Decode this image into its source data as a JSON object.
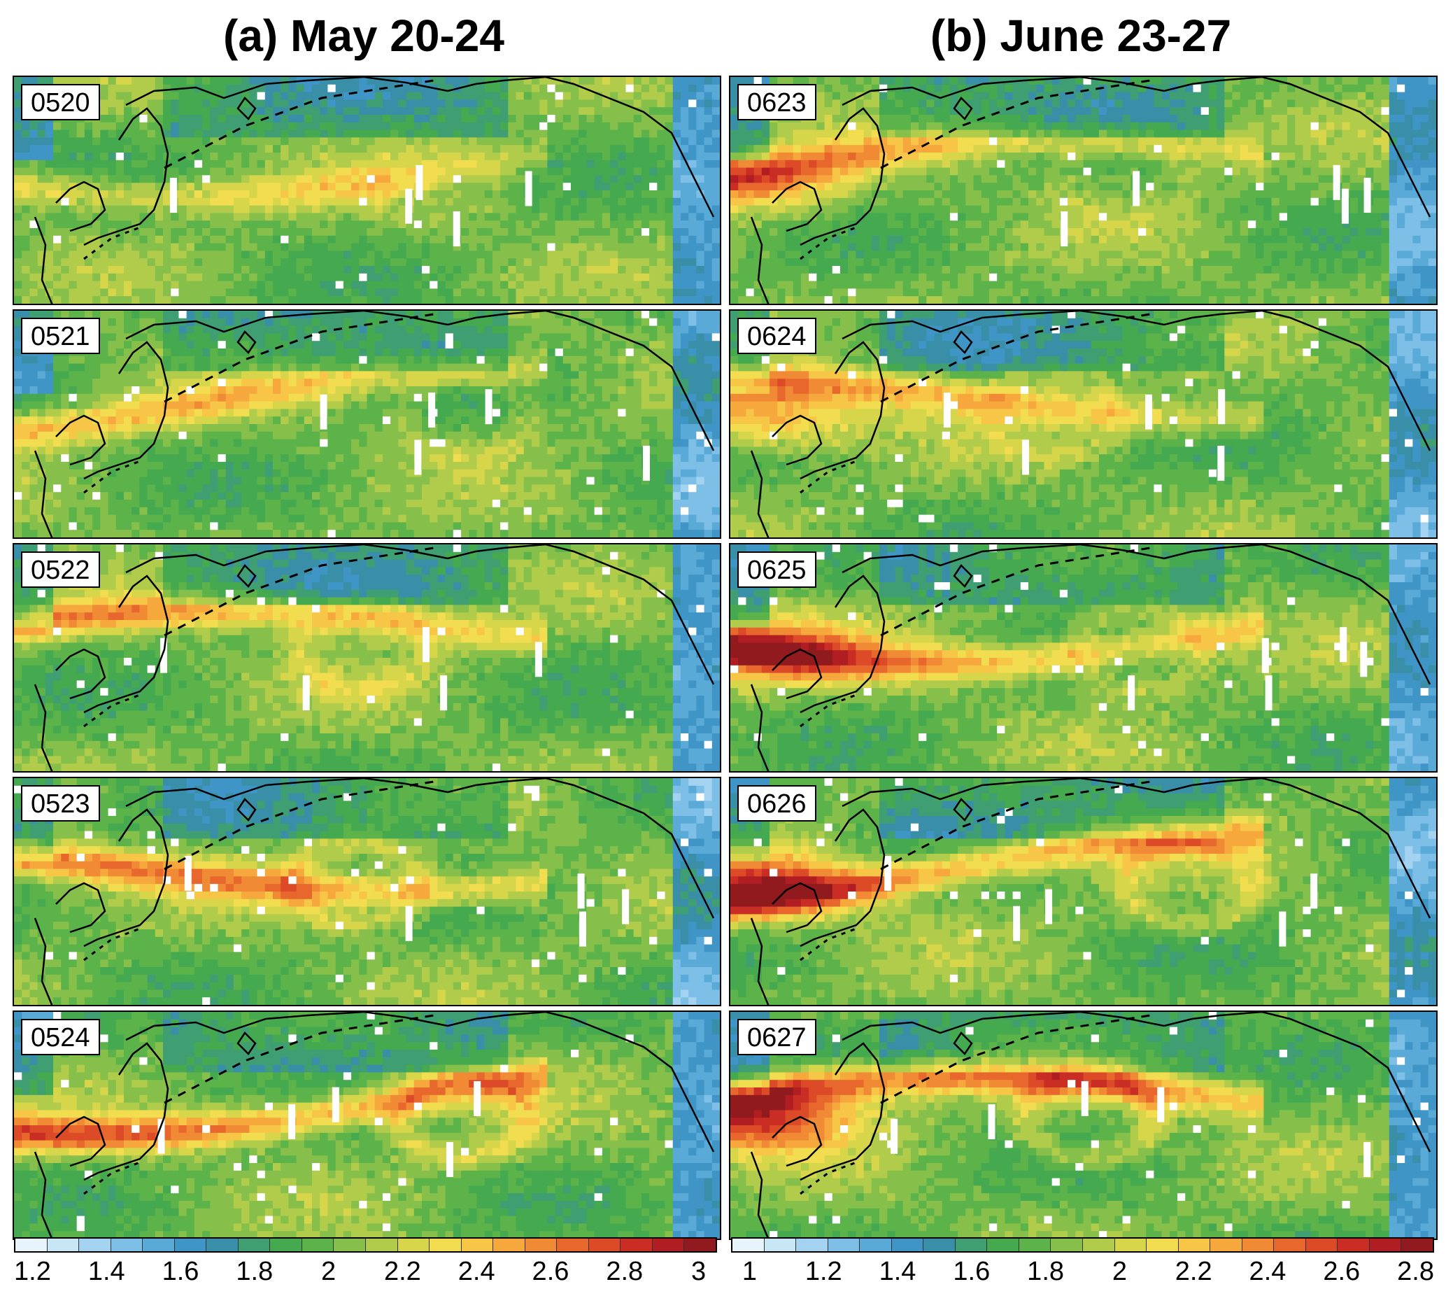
{
  "titles": {
    "left": "(a) May 20-24",
    "right": "(b) June 23-27"
  },
  "panels_left": [
    "0520",
    "0521",
    "0522",
    "0523",
    "0524"
  ],
  "panels_right": [
    "0623",
    "0624",
    "0625",
    "0626",
    "0627"
  ],
  "colorbar_left": {
    "ticks": [
      "1.2",
      "1.4",
      "1.6",
      "1.8",
      "2",
      "2.2",
      "2.4",
      "2.6",
      "2.8",
      "3"
    ],
    "range": [
      1.15,
      3.05
    ]
  },
  "colorbar_right": {
    "ticks": [
      "1",
      "1.2",
      "1.4",
      "1.6",
      "1.8",
      "2",
      "2.2",
      "2.4",
      "2.6",
      "2.8"
    ],
    "range": [
      0.95,
      2.85
    ]
  },
  "colors": {
    "scale": [
      "#e8f4fb",
      "#c7e6f6",
      "#a3d3f0",
      "#7dbfe6",
      "#5aaad8",
      "#3f95c6",
      "#3a8fa8",
      "#3f9f73",
      "#45a94f",
      "#5cb34a",
      "#86c04b",
      "#b0cc4a",
      "#d7d64a",
      "#f2dc4f",
      "#f8c646",
      "#f6a83c",
      "#f08a35",
      "#e8672c",
      "#dc4a27",
      "#c92d24",
      "#b01d22",
      "#911a1f"
    ]
  }
}
